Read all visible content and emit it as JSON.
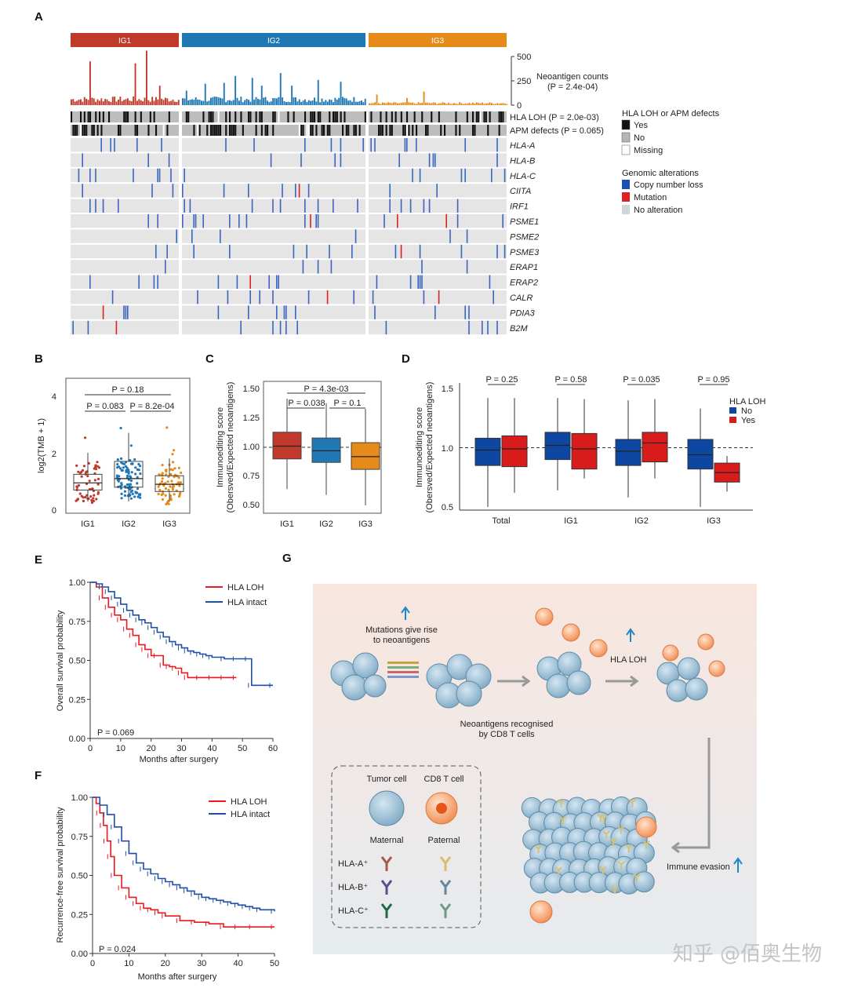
{
  "panels": {
    "A": "A",
    "B": "B",
    "C": "C",
    "D": "D",
    "E": "E",
    "F": "F",
    "G": "G"
  },
  "groups": [
    {
      "name": "IG1",
      "color": "#c0392b"
    },
    {
      "name": "IG2",
      "color": "#1f77b4"
    },
    {
      "name": "IG3",
      "color": "#e68a1a"
    }
  ],
  "neo": {
    "label": "Neoantigen counts",
    "pval": "(P = 2.4e-04)",
    "ticks": [
      "500",
      "250",
      "0"
    ]
  },
  "tracks": {
    "loh": "HLA LOH (P = 2.0e-03)",
    "apm": "APM defects (P = 0.065)"
  },
  "genes": [
    "HLA-A",
    "HLA-B",
    "HLA-C",
    "CIITA",
    "IRF1",
    "PSME1",
    "PSME2",
    "PSME3",
    "ERAP1",
    "ERAP2",
    "CALR",
    "PDIA3",
    "B2M"
  ],
  "legend": {
    "title1": "HLA LOH or APM defects",
    "yes": "Yes",
    "no": "No",
    "missing": "Missing",
    "title2": "Genomic alterations",
    "cnl": "Copy number loss",
    "mut": "Mutation",
    "noalt": "No alteration"
  },
  "colors": {
    "cnl": "#3a64c0",
    "mut": "#e02020",
    "bg": "#e5e5e5",
    "loh_red": "#e8191f",
    "intact_blue": "#1f4ea3"
  },
  "B": {
    "ylabel": "log2(TMB + 1)",
    "yticks": [
      "4",
      "2",
      "0"
    ],
    "xlabels": [
      "IG1",
      "IG2",
      "IG3"
    ],
    "p": [
      "P = 0.18",
      "P = 0.083",
      "P = 8.2e-04"
    ],
    "box": [
      {
        "q1": 0.7,
        "med": 0.95,
        "q3": 1.25,
        "lo": 0.3,
        "hi": 2.0
      },
      {
        "q1": 0.8,
        "med": 1.1,
        "q3": 1.7,
        "lo": 0.3,
        "hi": 2.7
      },
      {
        "q1": 0.65,
        "med": 0.9,
        "q3": 1.2,
        "lo": 0.3,
        "hi": 1.8
      }
    ]
  },
  "C": {
    "ylabel1": "Immunoediting score",
    "ylabel2": "(Obersved/Expected neoantigens)",
    "yticks": [
      "1.50",
      "1.25",
      "1.00",
      "0.75",
      "0.50"
    ],
    "xlabels": [
      "IG1",
      "IG2",
      "IG3"
    ],
    "p": [
      "P = 4.3e-03",
      "P = 0.038",
      "P = 0.1"
    ],
    "box": [
      {
        "q1": 0.9,
        "med": 1.01,
        "q3": 1.13,
        "lo": 0.64,
        "hi": 1.42
      },
      {
        "q1": 0.87,
        "med": 0.97,
        "q3": 1.08,
        "lo": 0.59,
        "hi": 1.38
      },
      {
        "q1": 0.81,
        "med": 0.92,
        "q3": 1.04,
        "lo": 0.5,
        "hi": 1.33
      }
    ]
  },
  "D": {
    "ylabel1": "Immunoediting score",
    "ylabel2": "(Obersved/Expected neoantigens)",
    "yticks": [
      "1.5",
      "1.0",
      "0.5"
    ],
    "xlabels": [
      "Total",
      "IG1",
      "IG2",
      "IG3"
    ],
    "p": [
      "P = 0.25",
      "P = 0.58",
      "P = 0.035",
      "P = 0.95"
    ],
    "legend_title": "HLA LOH",
    "legend_no": "No",
    "legend_yes": "Yes",
    "box": [
      {
        "no": {
          "q1": 0.85,
          "med": 0.98,
          "q3": 1.08,
          "lo": 0.5,
          "hi": 1.42
        },
        "yes": {
          "q1": 0.84,
          "med": 0.99,
          "q3": 1.1,
          "lo": 0.62,
          "hi": 1.42
        }
      },
      {
        "no": {
          "q1": 0.9,
          "med": 1.02,
          "q3": 1.13,
          "lo": 0.64,
          "hi": 1.42
        },
        "yes": {
          "q1": 0.82,
          "med": 0.99,
          "q3": 1.12,
          "lo": 0.74,
          "hi": 1.41
        }
      },
      {
        "no": {
          "q1": 0.85,
          "med": 0.97,
          "q3": 1.07,
          "lo": 0.58,
          "hi": 1.4
        },
        "yes": {
          "q1": 0.88,
          "med": 1.04,
          "q3": 1.13,
          "lo": 0.74,
          "hi": 1.41
        }
      },
      {
        "no": {
          "q1": 0.82,
          "med": 0.94,
          "q3": 1.07,
          "lo": 0.5,
          "hi": 1.33
        },
        "yes": {
          "q1": 0.71,
          "med": 0.79,
          "q3": 0.87,
          "lo": 0.63,
          "hi": 0.93
        }
      }
    ]
  },
  "E": {
    "ylabel": "Overall survival probability",
    "xlabel": "Months after surgery",
    "yticks": [
      "1.00",
      "0.75",
      "0.50",
      "0.25",
      "0.00"
    ],
    "xticks": [
      "0",
      "10",
      "20",
      "30",
      "40",
      "50",
      "60"
    ],
    "legend_loh": "HLA LOH",
    "legend_intact": "HLA intact",
    "p": "P = 0.069"
  },
  "F": {
    "ylabel": "Recurrence-free survival probability",
    "xlabel": "Months after surgery",
    "yticks": [
      "1.00",
      "0.75",
      "0.50",
      "0.25",
      "0.00"
    ],
    "xticks": [
      "0",
      "10",
      "20",
      "30",
      "40",
      "50"
    ],
    "legend_loh": "HLA LOH",
    "legend_intact": "HLA intact",
    "p": "P = 0.024"
  },
  "chart_data": [
    {
      "type": "line",
      "title": "E: Overall survival",
      "xlabel": "Months after surgery",
      "ylabel": "Overall survival probability",
      "xlim": [
        0,
        60
      ],
      "ylim": [
        0,
        1
      ],
      "series": [
        {
          "name": "HLA LOH",
          "x": [
            0,
            2,
            4,
            6,
            8,
            10,
            12,
            14,
            16,
            18,
            20,
            22,
            24,
            26,
            28,
            30,
            32,
            36,
            40,
            44,
            48
          ],
          "y": [
            1.0,
            0.97,
            0.9,
            0.84,
            0.79,
            0.76,
            0.7,
            0.66,
            0.6,
            0.57,
            0.53,
            0.53,
            0.47,
            0.46,
            0.45,
            0.42,
            0.39,
            0.39,
            0.39,
            0.39,
            0.39
          ]
        },
        {
          "name": "HLA intact",
          "x": [
            0,
            2,
            4,
            6,
            8,
            10,
            12,
            14,
            16,
            18,
            20,
            22,
            24,
            26,
            28,
            30,
            32,
            34,
            36,
            38,
            40,
            44,
            48,
            52,
            53,
            60
          ],
          "y": [
            1.0,
            0.99,
            0.97,
            0.94,
            0.9,
            0.86,
            0.82,
            0.79,
            0.76,
            0.74,
            0.71,
            0.68,
            0.65,
            0.62,
            0.6,
            0.58,
            0.56,
            0.55,
            0.54,
            0.53,
            0.52,
            0.51,
            0.51,
            0.51,
            0.34,
            0.34
          ]
        }
      ],
      "annotation": "P = 0.069"
    },
    {
      "type": "line",
      "title": "F: Recurrence-free survival",
      "xlabel": "Months after surgery",
      "ylabel": "Recurrence-free survival probability",
      "xlim": [
        0,
        50
      ],
      "ylim": [
        0,
        1
      ],
      "series": [
        {
          "name": "HLA LOH",
          "x": [
            0,
            1,
            2,
            3,
            4,
            5,
            6,
            8,
            10,
            12,
            14,
            16,
            18,
            20,
            24,
            28,
            32,
            36,
            40,
            44,
            50
          ],
          "y": [
            1.0,
            0.96,
            0.9,
            0.82,
            0.72,
            0.62,
            0.5,
            0.42,
            0.36,
            0.32,
            0.29,
            0.28,
            0.26,
            0.24,
            0.21,
            0.2,
            0.19,
            0.17,
            0.17,
            0.17,
            0.17
          ]
        },
        {
          "name": "HLA intact",
          "x": [
            0,
            2,
            4,
            6,
            8,
            10,
            12,
            14,
            16,
            18,
            20,
            22,
            24,
            26,
            28,
            30,
            32,
            34,
            36,
            38,
            40,
            42,
            44,
            46,
            50
          ],
          "y": [
            1.0,
            0.95,
            0.89,
            0.81,
            0.72,
            0.64,
            0.58,
            0.54,
            0.51,
            0.48,
            0.46,
            0.44,
            0.42,
            0.4,
            0.38,
            0.36,
            0.35,
            0.34,
            0.33,
            0.32,
            0.31,
            0.3,
            0.29,
            0.28,
            0.27
          ]
        }
      ],
      "annotation": "P = 0.024"
    }
  ],
  "G": {
    "mutations": "Mutations give rise",
    "mutations2": "to neoantigens",
    "recognised": "Neoantigens recognised",
    "recognised2": "by CD8 T cells",
    "hlaloh": "HLA LOH",
    "evasion": "Immune evasion",
    "tumor": "Tumor cell",
    "cd8": "CD8 T cell",
    "maternal": "Maternal",
    "paternal": "Paternal",
    "hlaA": "HLA-A⁺",
    "hlaB": "HLA-B⁺",
    "hlaC": "HLA-C⁺"
  },
  "watermark": "知乎 @佰奥生物"
}
